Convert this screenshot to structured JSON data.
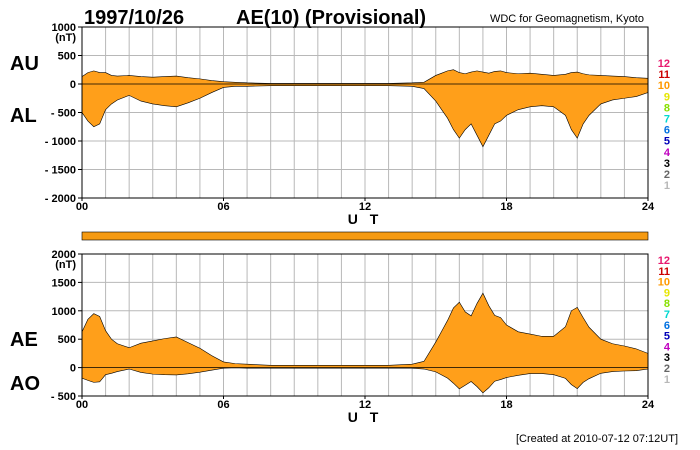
{
  "header": {
    "date": "1997/10/26",
    "title": "AE(10) (Provisional)",
    "source": "WDC for Geomagnetism, Kyoto"
  },
  "footer": {
    "created": "[Created at 2010-07-12 07:12UT]"
  },
  "legend_colors": [
    "#e8186e",
    "#cc0000",
    "#ff9900",
    "#e6e600",
    "#88e000",
    "#00d8d0",
    "#0070e0",
    "#0000b8",
    "#c000c0",
    "#000000",
    "#666666",
    "#b8b8b8"
  ],
  "chart_data": [
    {
      "type": "area",
      "panel": "AU/AL",
      "labels": {
        "upper": "AU",
        "lower": "AL"
      },
      "unit": "(nT)",
      "xlabel": "U T",
      "xlim": [
        0,
        24
      ],
      "ylim": [
        -2000,
        1000
      ],
      "x_ticks": [
        0,
        6,
        12,
        18,
        24
      ],
      "x_tick_labels": [
        "00",
        "06",
        "12",
        "18",
        "24"
      ],
      "y_ticks": [
        1000,
        500,
        0,
        -500,
        -1000,
        -1500,
        -2000
      ],
      "y_tick_labels": [
        "1000",
        "500",
        "0",
        "- 500",
        "- 1000",
        "- 1500",
        "- 2000"
      ],
      "legend": [
        "12",
        "11",
        "10",
        "9",
        "8",
        "7",
        "6",
        "5",
        "4",
        "3",
        "2",
        "1"
      ],
      "grid": true,
      "x": [
        0,
        0.25,
        0.5,
        0.75,
        1,
        1.25,
        1.5,
        2,
        2.5,
        3,
        3.5,
        4,
        4.5,
        5,
        5.5,
        6,
        6.5,
        7,
        8,
        9,
        10,
        11,
        12,
        13,
        14,
        14.5,
        15,
        15.25,
        15.5,
        15.75,
        16,
        16.25,
        16.5,
        16.75,
        17,
        17.25,
        17.5,
        17.75,
        18,
        18.5,
        19,
        19.5,
        20,
        20.5,
        20.75,
        21,
        21.25,
        21.5,
        22,
        22.5,
        23,
        23.5,
        24
      ],
      "series": [
        {
          "name": "AU",
          "values": [
            130,
            200,
            230,
            200,
            200,
            150,
            140,
            150,
            130,
            120,
            130,
            140,
            110,
            90,
            60,
            40,
            30,
            20,
            10,
            10,
            10,
            10,
            10,
            10,
            20,
            30,
            150,
            190,
            230,
            250,
            200,
            180,
            210,
            230,
            210,
            190,
            220,
            230,
            200,
            180,
            190,
            170,
            150,
            170,
            200,
            210,
            180,
            160,
            150,
            140,
            130,
            110,
            100
          ]
        },
        {
          "name": "AL",
          "values": [
            -500,
            -650,
            -750,
            -700,
            -450,
            -350,
            -280,
            -200,
            -300,
            -350,
            -380,
            -400,
            -330,
            -250,
            -150,
            -60,
            -40,
            -40,
            -30,
            -30,
            -30,
            -30,
            -30,
            -30,
            -40,
            -80,
            -300,
            -450,
            -600,
            -800,
            -950,
            -800,
            -700,
            -900,
            -1100,
            -900,
            -700,
            -650,
            -550,
            -450,
            -400,
            -380,
            -400,
            -550,
            -800,
            -950,
            -700,
            -550,
            -350,
            -280,
            -250,
            -220,
            -150
          ]
        }
      ]
    },
    {
      "type": "area",
      "panel": "AE/AO",
      "labels": {
        "upper": "AE",
        "lower": "AO"
      },
      "unit": "(nT)",
      "xlabel": "U T",
      "xlim": [
        0,
        24
      ],
      "ylim": [
        -500,
        2000
      ],
      "x_ticks": [
        0,
        6,
        12,
        18,
        24
      ],
      "x_tick_labels": [
        "00",
        "06",
        "12",
        "18",
        "24"
      ],
      "y_ticks": [
        2000,
        1500,
        1000,
        500,
        0,
        -500
      ],
      "y_tick_labels": [
        "2000",
        "1500",
        "1000",
        "500",
        "0",
        "- 500"
      ],
      "legend": [
        "12",
        "11",
        "10",
        "9",
        "8",
        "7",
        "6",
        "5",
        "4",
        "3",
        "2",
        "1"
      ],
      "grid": true,
      "x": [
        0,
        0.25,
        0.5,
        0.75,
        1,
        1.25,
        1.5,
        2,
        2.5,
        3,
        3.5,
        4,
        4.5,
        5,
        5.5,
        6,
        6.5,
        7,
        8,
        9,
        10,
        11,
        12,
        13,
        14,
        14.5,
        15,
        15.25,
        15.5,
        15.75,
        16,
        16.25,
        16.5,
        16.75,
        17,
        17.25,
        17.5,
        17.75,
        18,
        18.5,
        19,
        19.5,
        20,
        20.5,
        20.75,
        21,
        21.25,
        21.5,
        22,
        22.5,
        23,
        23.5,
        24
      ],
      "series": [
        {
          "name": "AE",
          "values": [
            630,
            850,
            950,
            900,
            650,
            500,
            420,
            350,
            430,
            470,
            510,
            540,
            440,
            340,
            210,
            100,
            70,
            60,
            40,
            40,
            40,
            40,
            40,
            40,
            60,
            110,
            450,
            640,
            830,
            1050,
            1150,
            980,
            910,
            1130,
            1310,
            1090,
            920,
            880,
            750,
            630,
            590,
            550,
            550,
            720,
            1000,
            1060,
            880,
            710,
            500,
            420,
            380,
            330,
            250
          ]
        },
        {
          "name": "AO",
          "values": [
            -185,
            -225,
            -260,
            -250,
            -125,
            -100,
            -70,
            -25,
            -85,
            -115,
            -125,
            -130,
            -110,
            -80,
            -45,
            -10,
            -5,
            -10,
            -10,
            -10,
            -10,
            -10,
            -10,
            -10,
            -10,
            -25,
            -75,
            -130,
            -185,
            -275,
            -375,
            -310,
            -245,
            -335,
            -445,
            -355,
            -240,
            -210,
            -175,
            -135,
            -105,
            -105,
            -125,
            -190,
            -300,
            -370,
            -260,
            -195,
            -100,
            -70,
            -60,
            -55,
            -25
          ]
        }
      ]
    }
  ]
}
